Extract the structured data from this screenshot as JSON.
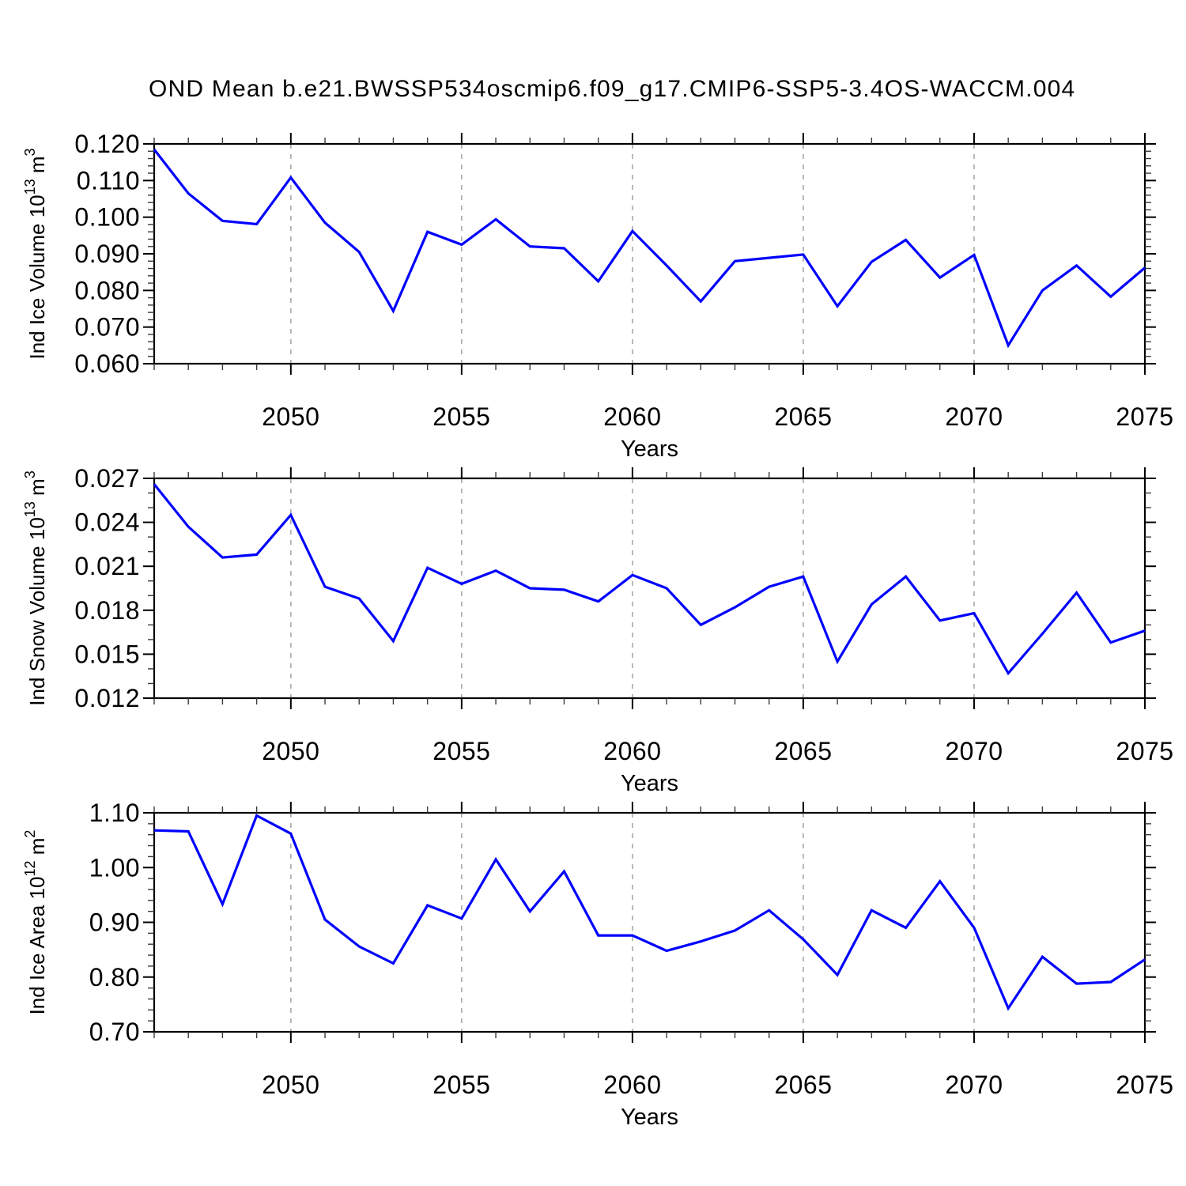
{
  "title": "OND Mean b.e21.BWSSP534oscmip6.f09_g17.CMIP6-SSP5-3.4OS-WACCM.004",
  "line_color": "#0000ff",
  "gridline_color": "#a9a9a9",
  "chart_data": [
    {
      "type": "line",
      "ylabel": "Ind Ice Volume 10^13 m^3",
      "xlabel": "Years",
      "xlim": [
        2046,
        2075
      ],
      "ylim": [
        0.06,
        0.12
      ],
      "yticks": [
        0.06,
        0.07,
        0.08,
        0.09,
        0.1,
        0.11,
        0.12
      ],
      "ytick_labels": [
        "0.060",
        "0.070",
        "0.080",
        "0.090",
        "0.100",
        "0.110",
        "0.120"
      ],
      "y_minor_step": 0.002,
      "xticks": [
        2050,
        2055,
        2060,
        2065,
        2070,
        2075
      ],
      "x_minor_step": 1,
      "grid": "vertical-dashed-at-major-xticks",
      "legend": "none",
      "x": [
        2046,
        2047,
        2048,
        2049,
        2050,
        2051,
        2052,
        2053,
        2054,
        2055,
        2056,
        2057,
        2058,
        2059,
        2060,
        2061,
        2062,
        2063,
        2064,
        2065,
        2066,
        2067,
        2068,
        2069,
        2070,
        2071,
        2072,
        2073,
        2074,
        2075
      ],
      "values": [
        0.1185,
        0.1065,
        0.099,
        0.0981,
        0.1108,
        0.0985,
        0.0905,
        0.0744,
        0.096,
        0.0925,
        0.0994,
        0.092,
        0.0915,
        0.0825,
        0.0962,
        0.0868,
        0.077,
        0.088,
        0.0889,
        0.0898,
        0.0757,
        0.0878,
        0.0938,
        0.0835,
        0.0897,
        0.065,
        0.08,
        0.0868,
        0.0783,
        0.0862
      ]
    },
    {
      "type": "line",
      "ylabel": "Ind Snow Volume 10^13 m^3",
      "xlabel": "Years",
      "xlim": [
        2046,
        2075
      ],
      "ylim": [
        0.012,
        0.027
      ],
      "yticks": [
        0.012,
        0.015,
        0.018,
        0.021,
        0.024,
        0.027
      ],
      "ytick_labels": [
        "0.012",
        "0.015",
        "0.018",
        "0.021",
        "0.024",
        "0.027"
      ],
      "y_minor_step": 0.001,
      "xticks": [
        2050,
        2055,
        2060,
        2065,
        2070,
        2075
      ],
      "x_minor_step": 1,
      "grid": "vertical-dashed-at-major-xticks",
      "legend": "none",
      "x": [
        2046,
        2047,
        2048,
        2049,
        2050,
        2051,
        2052,
        2053,
        2054,
        2055,
        2056,
        2057,
        2058,
        2059,
        2060,
        2061,
        2062,
        2063,
        2064,
        2065,
        2066,
        2067,
        2068,
        2069,
        2070,
        2071,
        2072,
        2073,
        2074,
        2075
      ],
      "values": [
        0.0266,
        0.0237,
        0.0216,
        0.0218,
        0.0245,
        0.0196,
        0.0188,
        0.0159,
        0.0209,
        0.0198,
        0.0207,
        0.0195,
        0.0194,
        0.0186,
        0.0204,
        0.0195,
        0.017,
        0.0182,
        0.0196,
        0.0203,
        0.0145,
        0.0184,
        0.0203,
        0.0173,
        0.0178,
        0.0137,
        0.0164,
        0.0192,
        0.0158,
        0.0166
      ]
    },
    {
      "type": "line",
      "ylabel": "Ind Ice Area 10^12 m^2",
      "xlabel": "Years",
      "xlim": [
        2046,
        2075
      ],
      "ylim": [
        0.7,
        1.1
      ],
      "yticks": [
        0.7,
        0.8,
        0.9,
        1.0,
        1.1
      ],
      "ytick_labels": [
        "0.70",
        "0.80",
        "0.90",
        "1.00",
        "1.10"
      ],
      "y_minor_step": 0.02,
      "xticks": [
        2050,
        2055,
        2060,
        2065,
        2070,
        2075
      ],
      "x_minor_step": 1,
      "grid": "vertical-dashed-at-major-xticks",
      "legend": "none",
      "x": [
        2046,
        2047,
        2048,
        2049,
        2050,
        2051,
        2052,
        2053,
        2054,
        2055,
        2056,
        2057,
        2058,
        2059,
        2060,
        2061,
        2062,
        2063,
        2064,
        2065,
        2066,
        2067,
        2068,
        2069,
        2070,
        2071,
        2072,
        2073,
        2074,
        2075
      ],
      "values": [
        1.068,
        1.066,
        0.933,
        1.095,
        1.062,
        0.905,
        0.856,
        0.825,
        0.931,
        0.907,
        1.015,
        0.92,
        0.993,
        0.876,
        0.876,
        0.848,
        0.865,
        0.885,
        0.922,
        0.869,
        0.804,
        0.922,
        0.89,
        0.975,
        0.89,
        0.743,
        0.837,
        0.788,
        0.791,
        0.832
      ]
    }
  ]
}
